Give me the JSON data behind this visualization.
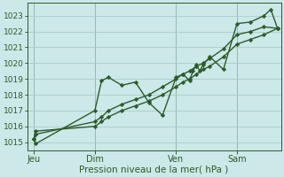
{
  "xlabel": "Pression niveau de la mer( hPa )",
  "bg_color": "#cce8e8",
  "grid_color": "#aacccc",
  "line_color": "#2d5a2d",
  "ylim": [
    1014.5,
    1023.8
  ],
  "xlim": [
    -2,
    73
  ],
  "yticks": [
    1015,
    1016,
    1017,
    1018,
    1019,
    1020,
    1021,
    1022,
    1023
  ],
  "day_labels": [
    "Jeu",
    "Dim",
    "Ven",
    "Sam"
  ],
  "day_positions": [
    0,
    18,
    42,
    60
  ],
  "series1_x": [
    0,
    0.5,
    18,
    20,
    22,
    26,
    30,
    34,
    38,
    42,
    44,
    46,
    47,
    48,
    49,
    50,
    52,
    56,
    60,
    64,
    68,
    70,
    72
  ],
  "series1_y": [
    1015.2,
    1014.9,
    1017.0,
    1018.9,
    1019.1,
    1018.6,
    1018.8,
    1017.5,
    1016.7,
    1019.1,
    1019.3,
    1018.9,
    1019.5,
    1019.9,
    1019.5,
    1019.9,
    1020.4,
    1019.6,
    1022.5,
    1022.6,
    1023.0,
    1023.4,
    1022.2
  ],
  "series2_x": [
    0,
    0.5,
    18,
    20,
    22,
    26,
    30,
    34,
    38,
    42,
    44,
    46,
    48,
    50,
    52,
    56,
    60,
    64,
    68,
    72
  ],
  "series2_y": [
    1015.2,
    1015.5,
    1016.3,
    1016.6,
    1017.0,
    1017.4,
    1017.7,
    1018.0,
    1018.5,
    1019.0,
    1019.3,
    1019.5,
    1019.8,
    1020.0,
    1020.3,
    1020.9,
    1021.8,
    1022.0,
    1022.3,
    1022.2
  ],
  "series3_x": [
    0,
    0.5,
    18,
    20,
    22,
    26,
    30,
    34,
    38,
    42,
    44,
    46,
    48,
    50,
    52,
    56,
    60,
    64,
    68,
    72
  ],
  "series3_y": [
    1015.2,
    1015.7,
    1016.0,
    1016.3,
    1016.6,
    1017.0,
    1017.3,
    1017.6,
    1018.0,
    1018.5,
    1018.8,
    1019.0,
    1019.3,
    1019.6,
    1019.8,
    1020.4,
    1021.2,
    1021.5,
    1021.8,
    1022.2
  ]
}
